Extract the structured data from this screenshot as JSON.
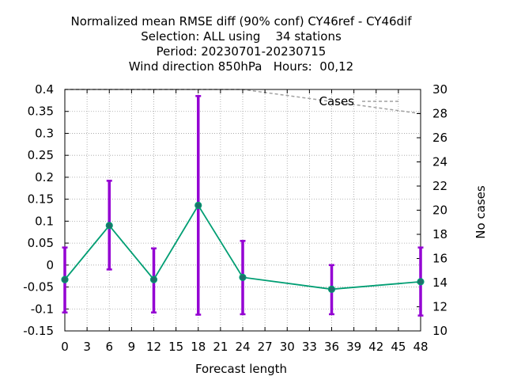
{
  "chart_data": {
    "type": "line",
    "title_lines": [
      "Normalized mean RMSE diff (90% conf) CY46ref - CY46dif",
      "Selection: ALL using    34 stations",
      "Period: 20230701-20230715",
      "Wind direction 850hPa   Hours:  00,12"
    ],
    "xlabel": "Forecast length",
    "ylabel": "",
    "y2label": "No cases",
    "xlim": [
      0,
      48
    ],
    "ylim": [
      -0.15,
      0.4
    ],
    "y2lim": [
      10,
      30
    ],
    "x_ticks": [
      0,
      3,
      6,
      9,
      12,
      15,
      18,
      21,
      24,
      27,
      30,
      33,
      36,
      39,
      42,
      45,
      48
    ],
    "y_tick_labels": [
      "-0.15",
      "-0.1",
      "-0.05",
      "0",
      "0.05",
      "0.1",
      "0.15",
      "0.2",
      "0.25",
      "0.3",
      "0.35",
      "0.4"
    ],
    "y2_ticks": [
      10,
      12,
      14,
      16,
      18,
      20,
      22,
      24,
      26,
      28,
      30
    ],
    "grid": true,
    "colors": {
      "line": "#009e73",
      "errorbar": "#9400d3",
      "cases": "#a0a0a0"
    },
    "series": [
      {
        "x": [
          0,
          6,
          12,
          18,
          24,
          36,
          48
        ],
        "values": [
          -0.033,
          0.09,
          -0.033,
          0.136,
          -0.028,
          -0.055,
          -0.038
        ],
        "lower": [
          -0.108,
          -0.01,
          -0.108,
          -0.113,
          -0.112,
          -0.112,
          -0.115
        ],
        "upper": [
          0.04,
          0.192,
          0.038,
          0.385,
          0.055,
          0.0,
          0.04
        ]
      },
      {
        "name": "Cases",
        "axis": "y2",
        "x": [
          0,
          6,
          12,
          18,
          24,
          36,
          48
        ],
        "values": [
          30,
          30,
          30,
          30,
          30,
          29,
          28
        ]
      }
    ]
  }
}
